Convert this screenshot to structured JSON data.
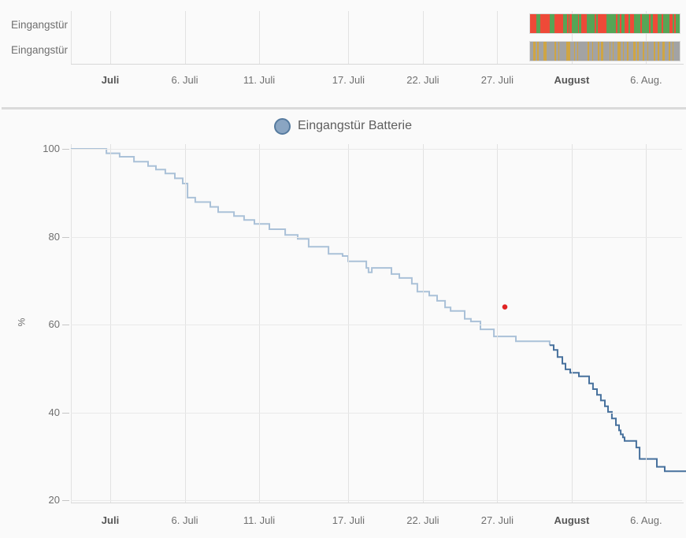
{
  "chart_data": [
    {
      "type": "timeline",
      "description": "state history timeline, two entity rows",
      "span_days": [
        28.15,
        38.31
      ],
      "x_ticks": [
        {
          "label": "Juli",
          "day": 0,
          "bold": true
        },
        {
          "label": "6. Juli",
          "day": 5
        },
        {
          "label": "11. Juli",
          "day": 10
        },
        {
          "label": "17. Juli",
          "day": 16
        },
        {
          "label": "22. Juli",
          "day": 21
        },
        {
          "label": "27. Juli",
          "day": 26
        },
        {
          "label": "August",
          "day": 31,
          "bold": true
        },
        {
          "label": "6. Aug.",
          "day": 36
        }
      ],
      "rows": [
        {
          "label": "Eingangstür",
          "palette": [
            "#ee4a38",
            "#56a556"
          ],
          "segments": [
            [
              0,
              4.0
            ],
            [
              1,
              2.3
            ],
            [
              0,
              5.5
            ],
            [
              1,
              3.0
            ],
            [
              0,
              5.0
            ],
            [
              1,
              2.5
            ],
            [
              0,
              1.0
            ],
            [
              1,
              0.7
            ],
            [
              0,
              1.2
            ],
            [
              1,
              3.6
            ],
            [
              0,
              0.8
            ],
            [
              1,
              1.2
            ],
            [
              0,
              3.6
            ],
            [
              1,
              4.8
            ],
            [
              0,
              0.9
            ],
            [
              1,
              0.9
            ],
            [
              0,
              5.0
            ],
            [
              1,
              5.8
            ],
            [
              0,
              1.0
            ],
            [
              1,
              1.6
            ],
            [
              0,
              1.0
            ],
            [
              1,
              1.8
            ],
            [
              0,
              2.2
            ],
            [
              1,
              1.3
            ],
            [
              0,
              2.2
            ],
            [
              1,
              3.6
            ],
            [
              0,
              1.3
            ],
            [
              1,
              4.0
            ],
            [
              0,
              0.9
            ],
            [
              1,
              1.8
            ],
            [
              0,
              2.6
            ],
            [
              1,
              2.6
            ],
            [
              0,
              0.9
            ],
            [
              1,
              3.6
            ],
            [
              0,
              1.8
            ],
            [
              1,
              1.0
            ],
            [
              0,
              1.2
            ],
            [
              1,
              2.2
            ]
          ]
        },
        {
          "label": "Eingangstür",
          "palette": [
            "#a3a3a3",
            "#cfa544"
          ],
          "segments": [
            [
              0,
              1.5
            ],
            [
              1,
              1.2
            ],
            [
              0,
              0.8
            ],
            [
              1,
              0.6
            ],
            [
              0,
              2.5
            ],
            [
              1,
              1.5
            ],
            [
              0,
              4.0
            ],
            [
              1,
              0.6
            ],
            [
              0,
              1.2
            ],
            [
              1,
              0.6
            ],
            [
              0,
              3.5
            ],
            [
              1,
              1.8
            ],
            [
              0,
              2.0
            ],
            [
              1,
              0.5
            ],
            [
              0,
              1.0
            ],
            [
              1,
              0.5
            ],
            [
              0,
              4.5
            ],
            [
              1,
              1.0
            ],
            [
              0,
              1.5
            ],
            [
              1,
              0.6
            ],
            [
              0,
              2.2
            ],
            [
              1,
              0.6
            ],
            [
              0,
              1.0
            ],
            [
              1,
              1.2
            ],
            [
              0,
              3.0
            ],
            [
              1,
              0.6
            ],
            [
              0,
              0.8
            ],
            [
              1,
              0.6
            ],
            [
              0,
              2.0
            ],
            [
              1,
              1.4
            ],
            [
              0,
              1.2
            ],
            [
              1,
              0.6
            ],
            [
              0,
              1.6
            ],
            [
              1,
              0.6
            ],
            [
              0,
              2.4
            ],
            [
              1,
              1.0
            ],
            [
              0,
              1.1
            ],
            [
              1,
              0.5
            ],
            [
              0,
              2.0
            ],
            [
              1,
              0.8
            ],
            [
              0,
              1.4
            ],
            [
              1,
              0.6
            ],
            [
              0,
              2.8
            ],
            [
              1,
              0.7
            ],
            [
              0,
              1.3
            ],
            [
              1,
              0.5
            ],
            [
              0,
              1.8
            ],
            [
              1,
              1.0
            ],
            [
              0,
              2.2
            ],
            [
              1,
              0.5
            ],
            [
              0,
              1.2
            ],
            [
              1,
              0.5
            ],
            [
              0,
              3.0
            ]
          ]
        }
      ]
    },
    {
      "type": "line",
      "legend": "Eingangstür Batterie",
      "ylabel": "%",
      "yticks": [
        100,
        80,
        60,
        40,
        20
      ],
      "ylim": [
        19.5,
        101
      ],
      "x_unit": "days since 1. Juli",
      "x_ticks": [
        {
          "label": "Juli",
          "day": 0,
          "bold": true
        },
        {
          "label": "6. Juli",
          "day": 5
        },
        {
          "label": "11. Juli",
          "day": 10
        },
        {
          "label": "17. Juli",
          "day": 16
        },
        {
          "label": "22. Juli",
          "day": 21
        },
        {
          "label": "27. Juli",
          "day": 26
        },
        {
          "label": "August",
          "day": 31,
          "bold": true
        },
        {
          "label": "6. Aug.",
          "day": 36
        }
      ],
      "series": [
        {
          "name": "battery-line-early",
          "color": "#aac1d8",
          "points": [
            [
              -2.65,
              100
            ],
            [
              -0.26,
              99
            ],
            [
              0.63,
              98.2
            ],
            [
              1.59,
              97.1
            ],
            [
              2.54,
              96.1
            ],
            [
              3.07,
              95.3
            ],
            [
              3.7,
              94.4
            ],
            [
              4.34,
              93.3
            ],
            [
              4.87,
              92.1
            ],
            [
              5.19,
              88.9
            ],
            [
              5.71,
              87.9
            ],
            [
              6.72,
              86.8
            ],
            [
              7.25,
              85.6
            ],
            [
              8.31,
              84.7
            ],
            [
              8.99,
              83.8
            ],
            [
              9.68,
              82.9
            ],
            [
              10.69,
              81.7
            ],
            [
              11.75,
              80.4
            ],
            [
              12.59,
              79.5
            ],
            [
              13.33,
              77.7
            ],
            [
              14.66,
              76.1
            ],
            [
              15.61,
              75.6
            ],
            [
              15.98,
              74.4
            ],
            [
              17.2,
              72.9
            ],
            [
              17.35,
              71.9
            ],
            [
              17.57,
              72.9
            ],
            [
              18.89,
              71.5
            ],
            [
              19.42,
              70.6
            ],
            [
              20.26,
              69.3
            ],
            [
              20.63,
              67.5
            ],
            [
              21.43,
              66.6
            ],
            [
              21.96,
              65.4
            ],
            [
              22.49,
              63.9
            ],
            [
              22.86,
              63.1
            ],
            [
              23.81,
              61.3
            ],
            [
              24.23,
              60.7
            ],
            [
              24.87,
              58.9
            ],
            [
              25.77,
              57.3
            ],
            [
              27.25,
              56.2
            ],
            [
              29.52,
              55.3
            ]
          ]
        },
        {
          "name": "battery-line-late",
          "color": "#47719d",
          "points": [
            [
              29.52,
              55.3
            ],
            [
              29.79,
              54.2
            ],
            [
              30.05,
              52.6
            ],
            [
              30.37,
              51.1
            ],
            [
              30.58,
              49.8
            ],
            [
              30.9,
              49.0
            ],
            [
              31.48,
              48.2
            ],
            [
              32.17,
              46.6
            ],
            [
              32.43,
              45.3
            ],
            [
              32.7,
              44.0
            ],
            [
              32.96,
              42.7
            ],
            [
              33.23,
              41.4
            ],
            [
              33.44,
              40.1
            ],
            [
              33.7,
              38.6
            ],
            [
              33.97,
              37.1
            ],
            [
              34.18,
              35.9
            ],
            [
              34.29,
              35.0
            ],
            [
              34.44,
              34.3
            ],
            [
              34.55,
              33.5
            ],
            [
              35.34,
              32.0
            ],
            [
              35.56,
              29.4
            ],
            [
              36.72,
              27.6
            ],
            [
              37.25,
              26.6
            ],
            [
              38.68,
              26.6
            ]
          ]
        }
      ],
      "marker": {
        "day": 26.51,
        "pct": 64,
        "color": "#e02424"
      }
    }
  ]
}
